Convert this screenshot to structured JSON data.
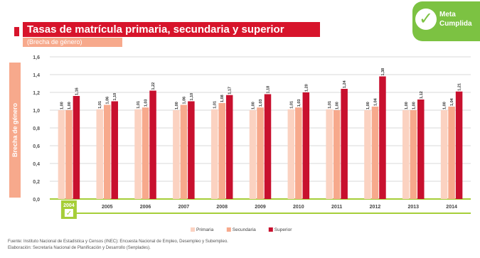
{
  "header": {
    "title": "Tasas de matrícula primaria, secundaria y superior",
    "subtitle": "(Brecha de género)"
  },
  "badge": {
    "line1": "Meta",
    "line2": "Cumplida",
    "icon": "check-icon"
  },
  "footer": {
    "source": "Fuente: Instituto Nacional de Estadística y Censos (INEC): Encuesta Nacional de Empleo, Desempleo y Subempleo.",
    "elaboration": "Elaboración: Secretaría Nacional de Planificación y Desarrollo (Senplades)."
  },
  "colors": {
    "title_red": "#d7142b",
    "primaria": "#fbd2c1",
    "secundaria": "#f7a98c",
    "superior": "#c8102e",
    "axis_green": "#a6ce39"
  },
  "chart_data": {
    "type": "bar",
    "title": "Tasas de matrícula primaria, secundaria y superior",
    "subtitle": "(Brecha de género)",
    "ylabel": "Brecha de género",
    "xlabel": "",
    "categories": [
      "2004",
      "2005",
      "2006",
      "2007",
      "2008",
      "2009",
      "2010",
      "2011",
      "2012",
      "2013",
      "2014"
    ],
    "ylim": [
      0,
      1.6
    ],
    "yticks": [
      "0,0",
      "0,2",
      "0,4",
      "0,6",
      "0,8",
      "1,0",
      "1,2",
      "1,4",
      "1,6"
    ],
    "grid": true,
    "legend_position": "bottom",
    "series": [
      {
        "name": "Primaria",
        "values": [
          1.0,
          1.01,
          1.01,
          1.0,
          1.01,
          1.0,
          1.01,
          1.01,
          1.0,
          1.0,
          1.0
        ]
      },
      {
        "name": "Secundaria",
        "values": [
          1.0,
          1.06,
          1.03,
          1.06,
          1.08,
          1.03,
          1.03,
          1.0,
          1.04,
          1.0,
          1.04
        ]
      },
      {
        "name": "Superior",
        "values": [
          1.16,
          1.1,
          1.22,
          1.1,
          1.17,
          1.18,
          1.2,
          1.24,
          1.38,
          1.12,
          1.21
        ]
      }
    ],
    "data_labels": [
      [
        "1,00",
        "1,01",
        "1,01",
        "1,00",
        "1,01",
        "1,00",
        "1,01",
        "1,01",
        "1,00",
        "1,00",
        "1,00"
      ],
      [
        "1,00",
        "1,06",
        "1,03",
        "1,06",
        "1,08",
        "1,03",
        "1,03",
        "1,00",
        "1,04",
        "1,00",
        "1,04"
      ],
      [
        "1,16",
        "1,10",
        "1,22",
        "1,10",
        "1,17",
        "1,18",
        "1,20",
        "1,24",
        "1,38",
        "1,12",
        "1,21"
      ]
    ]
  }
}
